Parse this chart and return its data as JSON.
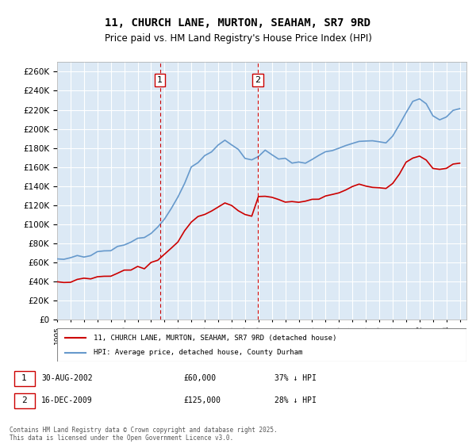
{
  "title": "11, CHURCH LANE, MURTON, SEAHAM, SR7 9RD",
  "subtitle": "Price paid vs. HM Land Registry's House Price Index (HPI)",
  "property_label": "11, CHURCH LANE, MURTON, SEAHAM, SR7 9RD (detached house)",
  "hpi_label": "HPI: Average price, detached house, County Durham",
  "property_color": "#cc0000",
  "hpi_color": "#6699cc",
  "background_color": "#dce9f5",
  "plot_bg_color": "#dce9f5",
  "grid_color": "#ffffff",
  "vline_color": "#cc0000",
  "marker1_year": 2002.66,
  "marker2_year": 2009.96,
  "marker1_label": "1",
  "marker2_label": "2",
  "annotation1": "30-AUG-2002    £60,000    37% ↓ HPI",
  "annotation2": "16-DEC-2009    £125,000    28% ↓ HPI",
  "footer": "Contains HM Land Registry data © Crown copyright and database right 2025.\nThis data is licensed under the Open Government Licence v3.0.",
  "ylim": [
    0,
    270000
  ],
  "yticks": [
    0,
    20000,
    40000,
    60000,
    80000,
    100000,
    120000,
    140000,
    160000,
    180000,
    200000,
    220000,
    240000,
    260000
  ],
  "xmin": 1995,
  "xmax": 2025.5
}
